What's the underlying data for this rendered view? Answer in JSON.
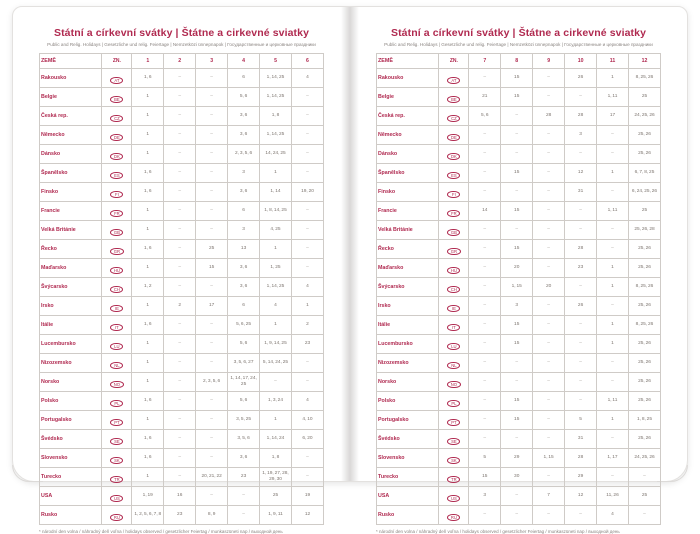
{
  "book": {
    "title": "Státní a církevní svátky | Štátne a cirkevné sviatky",
    "subtitle": "Public and Relig. Holidays | Gesetzliche und relig. Feiertage | Nemzetközi ünnepnapok | Государственные и церковные праздники",
    "footnote": "* národní den volna / náhradný deň voľna / holidays observed / gesetzlicher Feiertag / munkaszüneti nap / выходной день",
    "accent_color": "#b02a50"
  },
  "left_table": {
    "headers": [
      "ZEMĚ",
      "ZN.",
      "1",
      "2",
      "3",
      "4",
      "5",
      "6"
    ],
    "rows": [
      {
        "country": "Rakousko",
        "code": "AT",
        "cells": [
          "1, 6",
          "–",
          "–",
          "6",
          "1, 14, 25",
          "4"
        ]
      },
      {
        "country": "Belgie",
        "code": "BE",
        "cells": [
          "1",
          "–",
          "–",
          "5, 6",
          "1, 14, 25",
          "–"
        ]
      },
      {
        "country": "Česká rep.",
        "code": "CZ",
        "cells": [
          "1",
          "–",
          "–",
          "3, 6",
          "1, 8",
          "–"
        ]
      },
      {
        "country": "Německo",
        "code": "DE",
        "cells": [
          "1",
          "–",
          "–",
          "3, 6",
          "1, 14, 25",
          "–"
        ]
      },
      {
        "country": "Dánsko",
        "code": "DK",
        "cells": [
          "1",
          "–",
          "–",
          "2, 3, 5, 6",
          "14, 24, 25",
          "–"
        ]
      },
      {
        "country": "Španělsko",
        "code": "ES",
        "cells": [
          "1, 6",
          "–",
          "–",
          "3",
          "1",
          "–"
        ]
      },
      {
        "country": "Finsko",
        "code": "FI",
        "cells": [
          "1, 6",
          "–",
          "–",
          "3, 6",
          "1, 14",
          "19, 20"
        ]
      },
      {
        "country": "Francie",
        "code": "FR",
        "cells": [
          "1",
          "–",
          "–",
          "6",
          "1, 8, 14, 25",
          "–"
        ]
      },
      {
        "country": "Velká Británie",
        "code": "GB",
        "cells": [
          "1",
          "–",
          "–",
          "3",
          "4, 25",
          "–"
        ]
      },
      {
        "country": "Řecko",
        "code": "GR",
        "cells": [
          "1, 6",
          "–",
          "25",
          "13",
          "1",
          "–"
        ]
      },
      {
        "country": "Maďarsko",
        "code": "HU",
        "cells": [
          "1",
          "–",
          "15",
          "3, 6",
          "1, 25",
          "–"
        ]
      },
      {
        "country": "Švýcarsko",
        "code": "CH",
        "cells": [
          "1, 2",
          "–",
          "–",
          "3, 6",
          "1, 14, 25",
          "4"
        ]
      },
      {
        "country": "Irsko",
        "code": "IE",
        "cells": [
          "1",
          "2",
          "17",
          "6",
          "4",
          "1"
        ]
      },
      {
        "country": "Itálie",
        "code": "IT",
        "cells": [
          "1, 6",
          "–",
          "–",
          "5, 6, 25",
          "1",
          "2"
        ]
      },
      {
        "country": "Lucembursko",
        "code": "LU",
        "cells": [
          "1",
          "–",
          "–",
          "5, 6",
          "1, 9, 14, 25",
          "23"
        ]
      },
      {
        "country": "Nizozemsko",
        "code": "NL",
        "cells": [
          "1",
          "–",
          "–",
          "3, 5, 6, 27",
          "5, 14, 24, 25",
          "–"
        ]
      },
      {
        "country": "Norsko",
        "code": "NO",
        "cells": [
          "1",
          "–",
          "2, 3, 5, 6",
          "1, 14, 17, 24, 25",
          "–",
          "–"
        ]
      },
      {
        "country": "Polsko",
        "code": "PL",
        "cells": [
          "1, 6",
          "–",
          "–",
          "5, 6",
          "1, 3, 24",
          "4"
        ]
      },
      {
        "country": "Portugalsko",
        "code": "PT",
        "cells": [
          "1",
          "–",
          "–",
          "3, 5, 25",
          "1",
          "4, 10"
        ]
      },
      {
        "country": "Švédsko",
        "code": "SE",
        "cells": [
          "1, 6",
          "–",
          "–",
          "3, 5, 6",
          "1, 14, 24",
          "6, 20"
        ]
      },
      {
        "country": "Slovensko",
        "code": "SK",
        "cells": [
          "1, 6",
          "–",
          "–",
          "3, 6",
          "1, 8",
          "–"
        ]
      },
      {
        "country": "Turecko",
        "code": "TR",
        "cells": [
          "1",
          "–",
          "20, 21, 22",
          "23",
          "1, 19, 27, 28, 29, 30",
          "–"
        ]
      },
      {
        "country": "USA",
        "code": "US",
        "cells": [
          "1, 19",
          "16",
          "–",
          "–",
          "25",
          "19"
        ]
      },
      {
        "country": "Rusko",
        "code": "RU",
        "cells": [
          "1, 2, 5, 6, 7, 8",
          "23",
          "8, 9",
          "–",
          "1, 9, 11",
          "12"
        ]
      }
    ]
  },
  "right_table": {
    "headers": [
      "ZEMĚ",
      "ZN.",
      "7",
      "8",
      "9",
      "10",
      "11",
      "12"
    ],
    "rows": [
      {
        "country": "Rakousko",
        "code": "AT",
        "cells": [
          "–",
          "15",
          "–",
          "26",
          "1",
          "8, 25, 26"
        ]
      },
      {
        "country": "Belgie",
        "code": "BE",
        "cells": [
          "21",
          "15",
          "–",
          "–",
          "1, 11",
          "25"
        ]
      },
      {
        "country": "Česká rep.",
        "code": "CZ",
        "cells": [
          "5, 6",
          "–",
          "28",
          "28",
          "17",
          "24, 25, 26"
        ]
      },
      {
        "country": "Německo",
        "code": "DE",
        "cells": [
          "–",
          "–",
          "–",
          "3",
          "–",
          "25, 26"
        ]
      },
      {
        "country": "Dánsko",
        "code": "DK",
        "cells": [
          "–",
          "–",
          "–",
          "–",
          "–",
          "25, 26"
        ]
      },
      {
        "country": "Španělsko",
        "code": "ES",
        "cells": [
          "–",
          "15",
          "–",
          "12",
          "1",
          "6, 7, 8, 25"
        ]
      },
      {
        "country": "Finsko",
        "code": "FI",
        "cells": [
          "–",
          "–",
          "–",
          "31",
          "–",
          "6, 24, 25, 26"
        ]
      },
      {
        "country": "Francie",
        "code": "FR",
        "cells": [
          "14",
          "15",
          "–",
          "–",
          "1, 11",
          "25"
        ]
      },
      {
        "country": "Velká Británie",
        "code": "GB",
        "cells": [
          "–",
          "–",
          "–",
          "–",
          "–",
          "25, 26, 28"
        ]
      },
      {
        "country": "Řecko",
        "code": "GR",
        "cells": [
          "–",
          "15",
          "–",
          "28",
          "–",
          "25, 26"
        ]
      },
      {
        "country": "Maďarsko",
        "code": "HU",
        "cells": [
          "–",
          "20",
          "–",
          "23",
          "1",
          "25, 26"
        ]
      },
      {
        "country": "Švýcarsko",
        "code": "CH",
        "cells": [
          "–",
          "1, 15",
          "20",
          "–",
          "1",
          "8, 25, 26"
        ]
      },
      {
        "country": "Irsko",
        "code": "IE",
        "cells": [
          "–",
          "3",
          "–",
          "26",
          "–",
          "25, 26"
        ]
      },
      {
        "country": "Itálie",
        "code": "IT",
        "cells": [
          "–",
          "15",
          "–",
          "–",
          "1",
          "8, 25, 26"
        ]
      },
      {
        "country": "Lucembursko",
        "code": "LU",
        "cells": [
          "–",
          "15",
          "–",
          "–",
          "1",
          "25, 26"
        ]
      },
      {
        "country": "Nizozemsko",
        "code": "NL",
        "cells": [
          "–",
          "–",
          "–",
          "–",
          "–",
          "25, 26"
        ]
      },
      {
        "country": "Norsko",
        "code": "NO",
        "cells": [
          "–",
          "–",
          "–",
          "–",
          "–",
          "25, 26"
        ]
      },
      {
        "country": "Polsko",
        "code": "PL",
        "cells": [
          "–",
          "15",
          "–",
          "–",
          "1, 11",
          "25, 26"
        ]
      },
      {
        "country": "Portugalsko",
        "code": "PT",
        "cells": [
          "–",
          "15",
          "–",
          "5",
          "1",
          "1, 8, 25"
        ]
      },
      {
        "country": "Švédsko",
        "code": "SE",
        "cells": [
          "–",
          "–",
          "–",
          "31",
          "–",
          "25, 26"
        ]
      },
      {
        "country": "Slovensko",
        "code": "SK",
        "cells": [
          "5",
          "29",
          "1, 15",
          "28",
          "1, 17",
          "24, 25, 26"
        ]
      },
      {
        "country": "Turecko",
        "code": "TR",
        "cells": [
          "15",
          "30",
          "–",
          "29",
          "–",
          "–"
        ]
      },
      {
        "country": "USA",
        "code": "US",
        "cells": [
          "3",
          "–",
          "7",
          "12",
          "11, 26",
          "25"
        ]
      },
      {
        "country": "Rusko",
        "code": "RU",
        "cells": [
          "–",
          "–",
          "–",
          "–",
          "4",
          "–"
        ]
      }
    ]
  }
}
